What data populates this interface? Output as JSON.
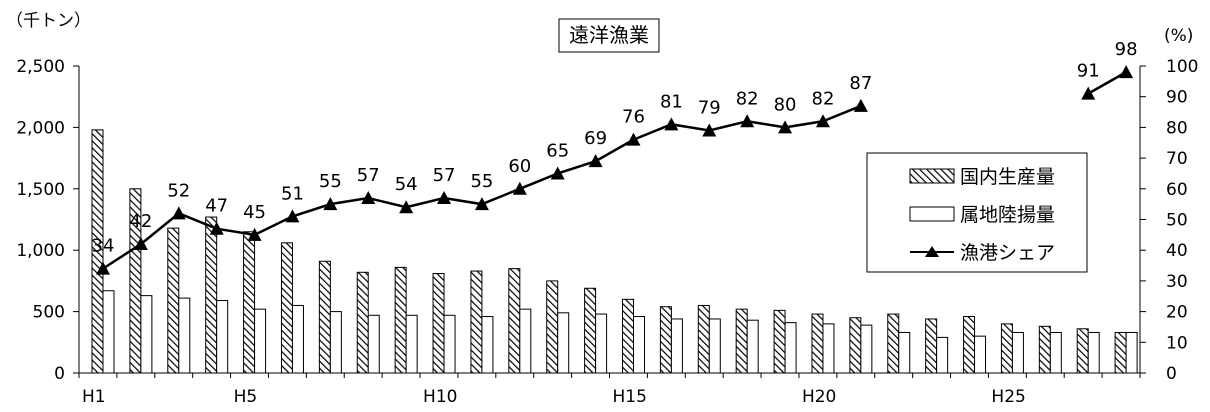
{
  "chart_data": {
    "type": "bar",
    "title": "遠洋漁業",
    "y_left_unit": "（千トン）",
    "y_right_unit": "(%)",
    "ylim_left": [
      0,
      2500
    ],
    "ylim_right": [
      0,
      100
    ],
    "y_left_ticks": [
      "0",
      "500",
      "1,000",
      "1,500",
      "2,000",
      "2,500"
    ],
    "y_right_ticks": [
      "0",
      "10",
      "20",
      "30",
      "40",
      "50",
      "60",
      "70",
      "80",
      "90",
      "100"
    ],
    "categories": [
      "H1",
      "H2",
      "H3",
      "H4",
      "H5",
      "H6",
      "H7",
      "H8",
      "H9",
      "H10",
      "H11",
      "H12",
      "H13",
      "H14",
      "H15",
      "H16",
      "H17",
      "H18",
      "H19",
      "H20",
      "H21",
      "H22",
      "H23",
      "H24",
      "H25",
      "H26",
      "H27",
      "H28"
    ],
    "x_tick_labels": [
      "H1",
      "",
      "",
      "",
      "H5",
      "",
      "",
      "",
      "",
      "H10",
      "",
      "",
      "",
      "",
      "H15",
      "",
      "",
      "",
      "",
      "H20",
      "",
      "",
      "",
      "",
      "H25",
      "",
      "",
      ""
    ],
    "series": [
      {
        "name": "国内生産量",
        "kind": "bar",
        "pattern": "hatched",
        "values": [
          1980,
          1500,
          1180,
          1270,
          1150,
          1060,
          910,
          820,
          860,
          810,
          830,
          850,
          750,
          690,
          600,
          540,
          550,
          520,
          510,
          480,
          450,
          480,
          440,
          460,
          400,
          380,
          360,
          330
        ]
      },
      {
        "name": "属地陸揚量",
        "kind": "bar",
        "pattern": "plain",
        "values": [
          670,
          630,
          610,
          590,
          520,
          550,
          500,
          470,
          470,
          470,
          460,
          520,
          490,
          480,
          460,
          440,
          440,
          430,
          410,
          400,
          390,
          330,
          290,
          300,
          330,
          330,
          330,
          330
        ]
      },
      {
        "name": "漁港シェア",
        "kind": "line",
        "axis": "right",
        "marker": "triangle",
        "values": [
          34,
          42,
          52,
          47,
          45,
          51,
          55,
          57,
          54,
          57,
          55,
          60,
          65,
          69,
          76,
          81,
          79,
          82,
          80,
          82,
          87,
          null,
          null,
          null,
          null,
          null,
          91,
          98
        ],
        "labels": [
          "34",
          "42",
          "52",
          "47",
          "45",
          "51",
          "55",
          "57",
          "54",
          "57",
          "55",
          "60",
          "65",
          "69",
          "76",
          "81",
          "79",
          "82",
          "80",
          "82",
          "87",
          "",
          "",
          "",
          "",
          "",
          "91",
          "98"
        ]
      }
    ],
    "legend_position": "right"
  }
}
